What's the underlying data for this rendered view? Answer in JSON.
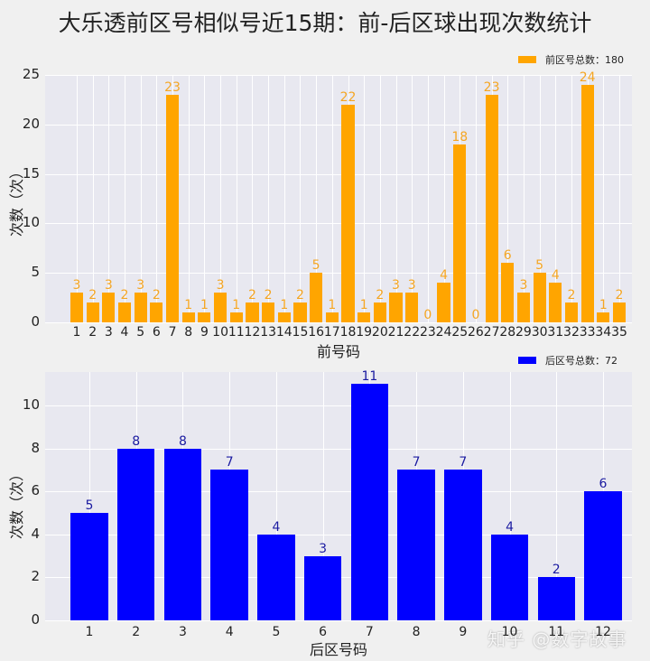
{
  "title": "大乐透前区号相似号近15期：前-后区球出现次数统计",
  "watermark": "知乎 @数字故事",
  "chart_data": [
    {
      "type": "bar",
      "name": "front",
      "title": "大乐透前区号相似号近15期：前-后区球出现次数统计",
      "xlabel": "前号码",
      "ylabel": "次数（次）",
      "legend": "前区号总数：180",
      "legend_position": "upper right",
      "color": "#FFA500",
      "label_color": "#F5A623",
      "grid": true,
      "ylim": [
        0,
        25
      ],
      "yticks": [
        0,
        5,
        10,
        15,
        20,
        25
      ],
      "categories": [
        "1",
        "2",
        "3",
        "4",
        "5",
        "6",
        "7",
        "8",
        "9",
        "10",
        "11",
        "12",
        "13",
        "14",
        "15",
        "16",
        "17",
        "18",
        "19",
        "20",
        "21",
        "22",
        "23",
        "24",
        "25",
        "26",
        "27",
        "28",
        "29",
        "30",
        "31",
        "32",
        "33",
        "34",
        "35"
      ],
      "values": [
        3,
        2,
        3,
        2,
        3,
        2,
        23,
        1,
        1,
        3,
        1,
        2,
        2,
        1,
        2,
        5,
        1,
        22,
        1,
        2,
        3,
        3,
        0,
        4,
        18,
        0,
        23,
        6,
        3,
        5,
        4,
        2,
        24,
        1,
        2
      ]
    },
    {
      "type": "bar",
      "name": "back",
      "xlabel": "后区号码",
      "ylabel": "次数（次）",
      "legend": "后区号总数：72",
      "legend_position": "upper right",
      "color": "#0000FF",
      "label_color": "#1A1AA0",
      "grid": true,
      "ylim": [
        0,
        11.55
      ],
      "yticks": [
        0,
        2,
        4,
        6,
        8,
        10
      ],
      "categories": [
        "1",
        "2",
        "3",
        "4",
        "5",
        "6",
        "7",
        "8",
        "9",
        "10",
        "11",
        "12"
      ],
      "values": [
        5,
        8,
        8,
        7,
        4,
        3,
        11,
        7,
        7,
        4,
        2,
        6
      ]
    }
  ]
}
